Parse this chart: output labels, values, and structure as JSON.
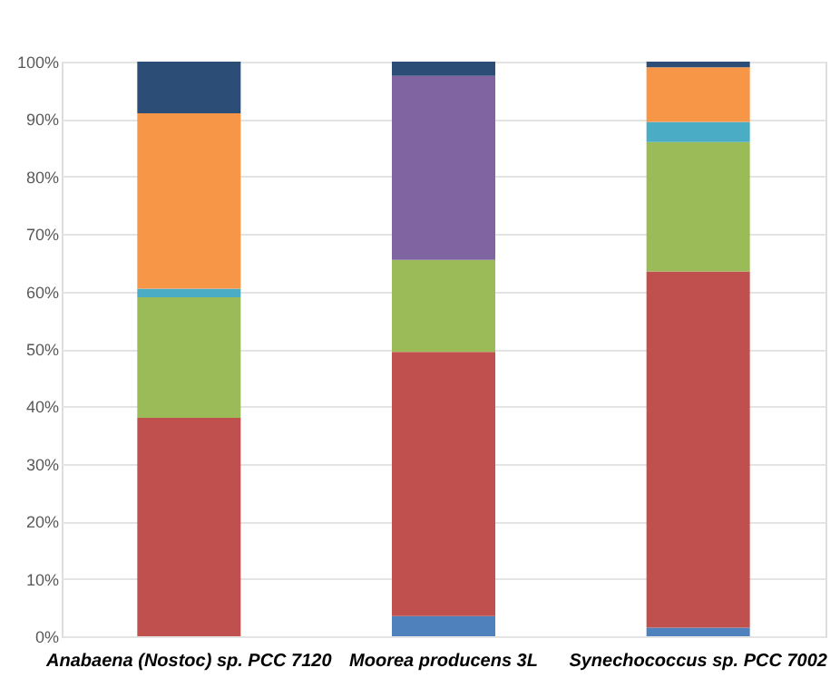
{
  "chart_data": {
    "type": "bar",
    "stacked": true,
    "categories": [
      "Anabaena (Nostoc) sp. PCC 7120",
      "Moorea producens 3L",
      "Synechococcus sp. PCC 7002"
    ],
    "series": [
      {
        "color": "#4f81bd",
        "values": [
          null,
          3.5,
          1.5
        ]
      },
      {
        "color": "#c0504d",
        "values": [
          38,
          46,
          62
        ]
      },
      {
        "color": "#9bbb59",
        "values": [
          21,
          16,
          22.5
        ]
      },
      {
        "color": "#4bacc6",
        "values": [
          1.5,
          null,
          3.5
        ]
      },
      {
        "color": "#8064a2",
        "values": [
          null,
          32,
          null
        ]
      },
      {
        "color": "#f79646",
        "values": [
          30.5,
          null,
          9.5
        ]
      },
      {
        "color": "#2c4d75",
        "values": [
          9,
          2.5,
          1
        ]
      }
    ],
    "ylim": [
      0,
      100
    ],
    "yticks": [
      {
        "value": 0,
        "label": "0%"
      },
      {
        "value": 10,
        "label": "10%"
      },
      {
        "value": 20,
        "label": "20%"
      },
      {
        "value": 30,
        "label": "30%"
      },
      {
        "value": 40,
        "label": "40%"
      },
      {
        "value": 50,
        "label": "50%"
      },
      {
        "value": 60,
        "label": "60%"
      },
      {
        "value": 70,
        "label": "70%"
      },
      {
        "value": 80,
        "label": "80%"
      },
      {
        "value": 90,
        "label": "90%"
      },
      {
        "value": 100,
        "label": "100%"
      }
    ],
    "grid": "y",
    "legend": false
  }
}
